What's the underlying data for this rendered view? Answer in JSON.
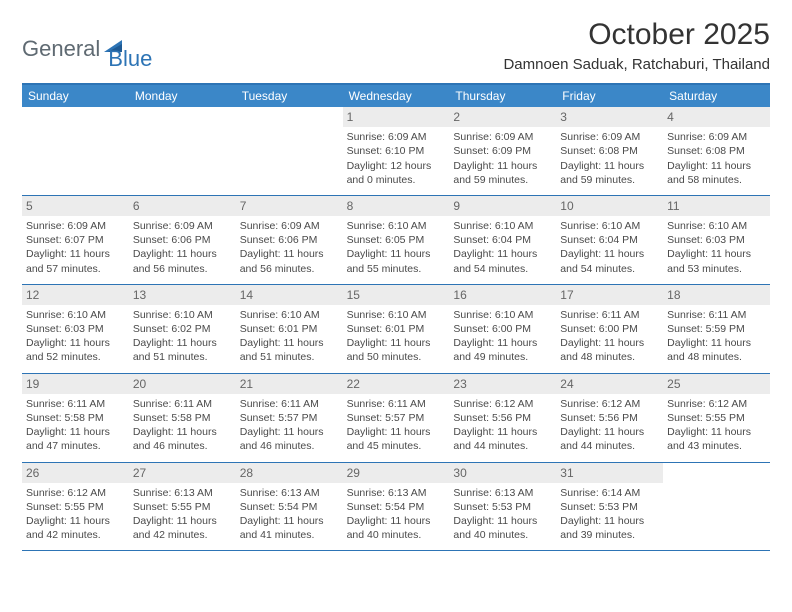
{
  "brand": {
    "part1": "General",
    "part2": "Blue"
  },
  "title": "October 2025",
  "location": "Damnoen Saduak, Ratchaburi, Thailand",
  "colors": {
    "header_bg": "#3b87c8",
    "border": "#2d74b5",
    "daynum_bg": "#ececec",
    "text": "#333333",
    "logo_gray": "#5f6a72",
    "logo_blue": "#2d74b5"
  },
  "weekdays": [
    "Sunday",
    "Monday",
    "Tuesday",
    "Wednesday",
    "Thursday",
    "Friday",
    "Saturday"
  ],
  "weeks": [
    [
      {
        "blank": true
      },
      {
        "blank": true
      },
      {
        "blank": true
      },
      {
        "n": "1",
        "sr": "Sunrise: 6:09 AM",
        "ss": "Sunset: 6:10 PM",
        "d1": "Daylight: 12 hours",
        "d2": "and 0 minutes."
      },
      {
        "n": "2",
        "sr": "Sunrise: 6:09 AM",
        "ss": "Sunset: 6:09 PM",
        "d1": "Daylight: 11 hours",
        "d2": "and 59 minutes."
      },
      {
        "n": "3",
        "sr": "Sunrise: 6:09 AM",
        "ss": "Sunset: 6:08 PM",
        "d1": "Daylight: 11 hours",
        "d2": "and 59 minutes."
      },
      {
        "n": "4",
        "sr": "Sunrise: 6:09 AM",
        "ss": "Sunset: 6:08 PM",
        "d1": "Daylight: 11 hours",
        "d2": "and 58 minutes."
      }
    ],
    [
      {
        "n": "5",
        "sr": "Sunrise: 6:09 AM",
        "ss": "Sunset: 6:07 PM",
        "d1": "Daylight: 11 hours",
        "d2": "and 57 minutes."
      },
      {
        "n": "6",
        "sr": "Sunrise: 6:09 AM",
        "ss": "Sunset: 6:06 PM",
        "d1": "Daylight: 11 hours",
        "d2": "and 56 minutes."
      },
      {
        "n": "7",
        "sr": "Sunrise: 6:09 AM",
        "ss": "Sunset: 6:06 PM",
        "d1": "Daylight: 11 hours",
        "d2": "and 56 minutes."
      },
      {
        "n": "8",
        "sr": "Sunrise: 6:10 AM",
        "ss": "Sunset: 6:05 PM",
        "d1": "Daylight: 11 hours",
        "d2": "and 55 minutes."
      },
      {
        "n": "9",
        "sr": "Sunrise: 6:10 AM",
        "ss": "Sunset: 6:04 PM",
        "d1": "Daylight: 11 hours",
        "d2": "and 54 minutes."
      },
      {
        "n": "10",
        "sr": "Sunrise: 6:10 AM",
        "ss": "Sunset: 6:04 PM",
        "d1": "Daylight: 11 hours",
        "d2": "and 54 minutes."
      },
      {
        "n": "11",
        "sr": "Sunrise: 6:10 AM",
        "ss": "Sunset: 6:03 PM",
        "d1": "Daylight: 11 hours",
        "d2": "and 53 minutes."
      }
    ],
    [
      {
        "n": "12",
        "sr": "Sunrise: 6:10 AM",
        "ss": "Sunset: 6:03 PM",
        "d1": "Daylight: 11 hours",
        "d2": "and 52 minutes."
      },
      {
        "n": "13",
        "sr": "Sunrise: 6:10 AM",
        "ss": "Sunset: 6:02 PM",
        "d1": "Daylight: 11 hours",
        "d2": "and 51 minutes."
      },
      {
        "n": "14",
        "sr": "Sunrise: 6:10 AM",
        "ss": "Sunset: 6:01 PM",
        "d1": "Daylight: 11 hours",
        "d2": "and 51 minutes."
      },
      {
        "n": "15",
        "sr": "Sunrise: 6:10 AM",
        "ss": "Sunset: 6:01 PM",
        "d1": "Daylight: 11 hours",
        "d2": "and 50 minutes."
      },
      {
        "n": "16",
        "sr": "Sunrise: 6:10 AM",
        "ss": "Sunset: 6:00 PM",
        "d1": "Daylight: 11 hours",
        "d2": "and 49 minutes."
      },
      {
        "n": "17",
        "sr": "Sunrise: 6:11 AM",
        "ss": "Sunset: 6:00 PM",
        "d1": "Daylight: 11 hours",
        "d2": "and 48 minutes."
      },
      {
        "n": "18",
        "sr": "Sunrise: 6:11 AM",
        "ss": "Sunset: 5:59 PM",
        "d1": "Daylight: 11 hours",
        "d2": "and 48 minutes."
      }
    ],
    [
      {
        "n": "19",
        "sr": "Sunrise: 6:11 AM",
        "ss": "Sunset: 5:58 PM",
        "d1": "Daylight: 11 hours",
        "d2": "and 47 minutes."
      },
      {
        "n": "20",
        "sr": "Sunrise: 6:11 AM",
        "ss": "Sunset: 5:58 PM",
        "d1": "Daylight: 11 hours",
        "d2": "and 46 minutes."
      },
      {
        "n": "21",
        "sr": "Sunrise: 6:11 AM",
        "ss": "Sunset: 5:57 PM",
        "d1": "Daylight: 11 hours",
        "d2": "and 46 minutes."
      },
      {
        "n": "22",
        "sr": "Sunrise: 6:11 AM",
        "ss": "Sunset: 5:57 PM",
        "d1": "Daylight: 11 hours",
        "d2": "and 45 minutes."
      },
      {
        "n": "23",
        "sr": "Sunrise: 6:12 AM",
        "ss": "Sunset: 5:56 PM",
        "d1": "Daylight: 11 hours",
        "d2": "and 44 minutes."
      },
      {
        "n": "24",
        "sr": "Sunrise: 6:12 AM",
        "ss": "Sunset: 5:56 PM",
        "d1": "Daylight: 11 hours",
        "d2": "and 44 minutes."
      },
      {
        "n": "25",
        "sr": "Sunrise: 6:12 AM",
        "ss": "Sunset: 5:55 PM",
        "d1": "Daylight: 11 hours",
        "d2": "and 43 minutes."
      }
    ],
    [
      {
        "n": "26",
        "sr": "Sunrise: 6:12 AM",
        "ss": "Sunset: 5:55 PM",
        "d1": "Daylight: 11 hours",
        "d2": "and 42 minutes."
      },
      {
        "n": "27",
        "sr": "Sunrise: 6:13 AM",
        "ss": "Sunset: 5:55 PM",
        "d1": "Daylight: 11 hours",
        "d2": "and 42 minutes."
      },
      {
        "n": "28",
        "sr": "Sunrise: 6:13 AM",
        "ss": "Sunset: 5:54 PM",
        "d1": "Daylight: 11 hours",
        "d2": "and 41 minutes."
      },
      {
        "n": "29",
        "sr": "Sunrise: 6:13 AM",
        "ss": "Sunset: 5:54 PM",
        "d1": "Daylight: 11 hours",
        "d2": "and 40 minutes."
      },
      {
        "n": "30",
        "sr": "Sunrise: 6:13 AM",
        "ss": "Sunset: 5:53 PM",
        "d1": "Daylight: 11 hours",
        "d2": "and 40 minutes."
      },
      {
        "n": "31",
        "sr": "Sunrise: 6:14 AM",
        "ss": "Sunset: 5:53 PM",
        "d1": "Daylight: 11 hours",
        "d2": "and 39 minutes."
      },
      {
        "blank": true
      }
    ]
  ]
}
